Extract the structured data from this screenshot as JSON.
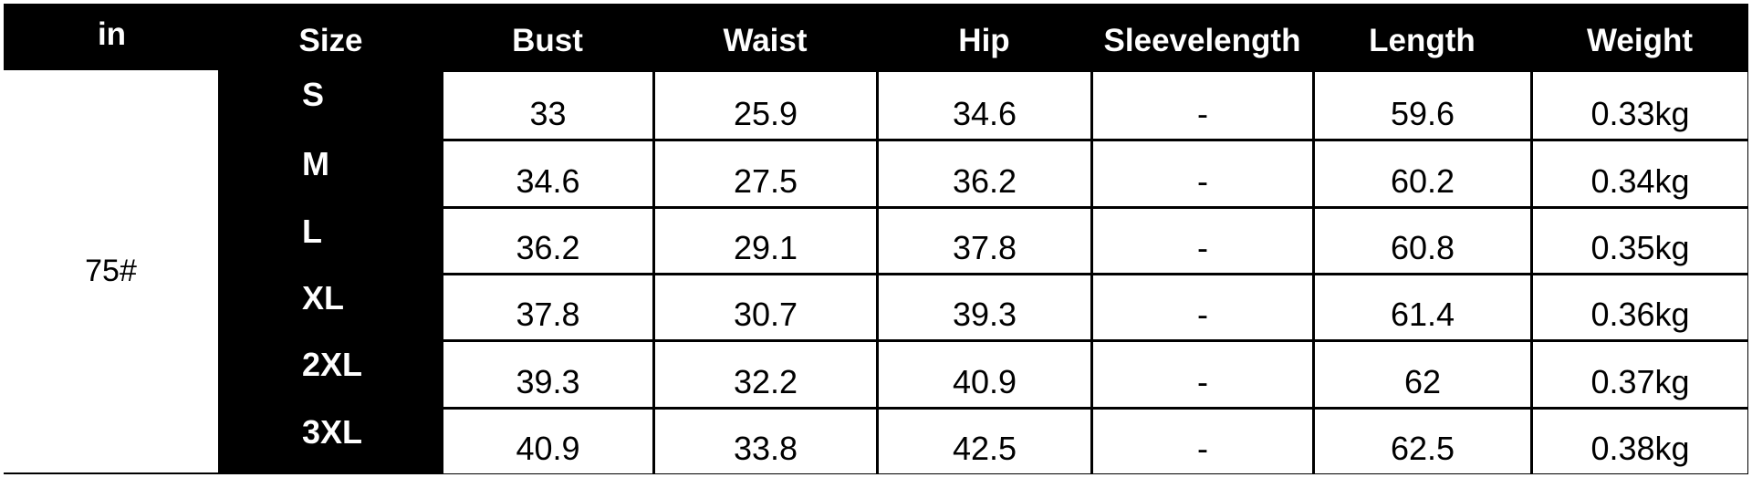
{
  "table": {
    "headers": [
      "in",
      "Size",
      "Bust",
      "Waist",
      "Hip",
      "Sleevelength",
      "Length",
      "Weight"
    ],
    "group_label": "75#",
    "rows": [
      {
        "size": "S",
        "cells": [
          "33",
          "25.9",
          "34.6",
          "-",
          "59.6",
          "0.33kg"
        ]
      },
      {
        "size": "M",
        "cells": [
          "34.6",
          "27.5",
          "36.2",
          "-",
          "60.2",
          "0.34kg"
        ]
      },
      {
        "size": "L",
        "cells": [
          "36.2",
          "29.1",
          "37.8",
          "-",
          "60.8",
          "0.35kg"
        ]
      },
      {
        "size": "XL",
        "cells": [
          "37.8",
          "30.7",
          "39.3",
          "-",
          "61.4",
          "0.36kg"
        ]
      },
      {
        "size": "2XL",
        "cells": [
          "39.3",
          "32.2",
          "40.9",
          "-",
          "62",
          "0.37kg"
        ]
      },
      {
        "size": "3XL",
        "cells": [
          "40.9",
          "33.8",
          "42.5",
          "-",
          "62.5",
          "0.38kg"
        ]
      }
    ],
    "colors": {
      "header_bg": "#000000",
      "header_text": "#ffffff",
      "cell_bg": "#ffffff",
      "cell_text": "#000000"
    }
  }
}
